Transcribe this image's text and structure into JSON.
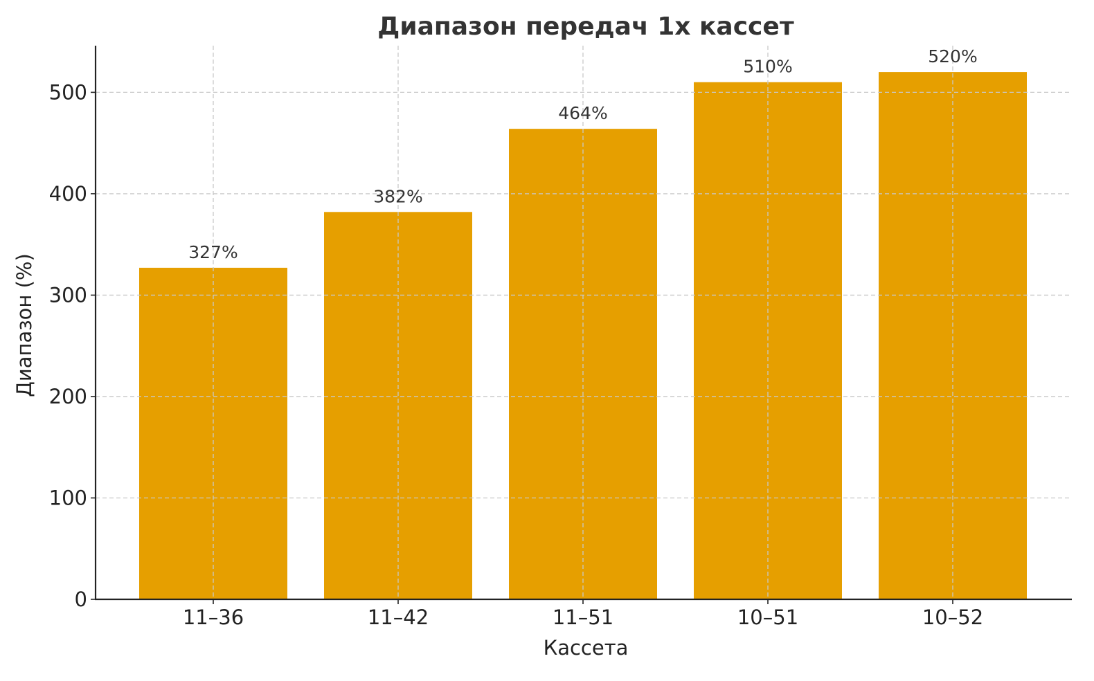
{
  "chart_data": {
    "type": "bar",
    "title": "Диапазон передач 1х кассет",
    "xlabel": "Кассета",
    "ylabel": "Диапазон (%)",
    "categories": [
      "11–36",
      "11–42",
      "11–51",
      "10–51",
      "10–52"
    ],
    "values": [
      327,
      382,
      464,
      510,
      520
    ],
    "data_labels": [
      "327%",
      "382%",
      "464%",
      "510%",
      "520%"
    ],
    "yticks": [
      0,
      100,
      200,
      300,
      400,
      500
    ],
    "ylim": [
      0,
      546
    ],
    "grid": true,
    "bar_color": "#E69F00"
  }
}
